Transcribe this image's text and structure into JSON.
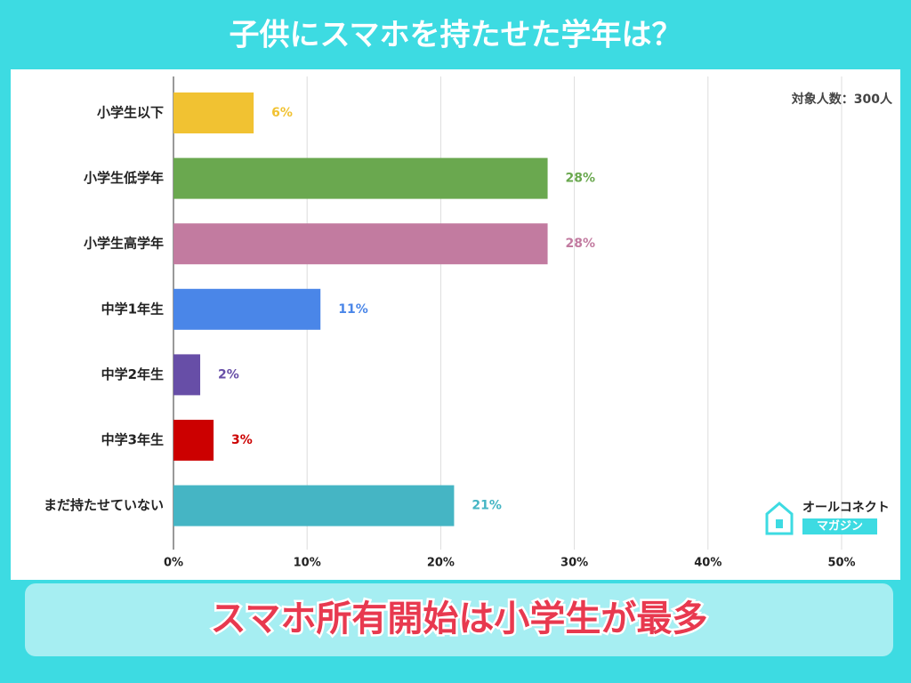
{
  "chart_data": {
    "type": "bar",
    "orientation": "horizontal",
    "title": "子供にスマホを持たせた学年は？",
    "note": "対象人数：300人",
    "categories": [
      "小学生以下",
      "小学生低学年",
      "小学生高学年",
      "中学1年生",
      "中学2年生",
      "中学3年生",
      "まだ持たせていない"
    ],
    "values": [
      6,
      28,
      28,
      11,
      2,
      3,
      21
    ],
    "value_labels": [
      "6%",
      "28%",
      "28%",
      "11%",
      "2%",
      "3%",
      "21%"
    ],
    "colors": [
      "#f1c232",
      "#6aa84f",
      "#c27ba0",
      "#4a86e8",
      "#674ea7",
      "#cc0000",
      "#45b5c4"
    ],
    "xlim": [
      0,
      50
    ],
    "xticks": [
      {
        "value": 0,
        "label": "0%"
      },
      {
        "value": 10,
        "label": "10%"
      },
      {
        "value": 20,
        "label": "20%"
      },
      {
        "value": 30,
        "label": "30%"
      },
      {
        "value": 40,
        "label": "40%"
      },
      {
        "value": 50,
        "label": "50%"
      }
    ],
    "grid": true
  },
  "headline": "スマホ所有開始は小学生が最多",
  "logo": {
    "name": "オールコネクト",
    "sub": "マガジン"
  }
}
